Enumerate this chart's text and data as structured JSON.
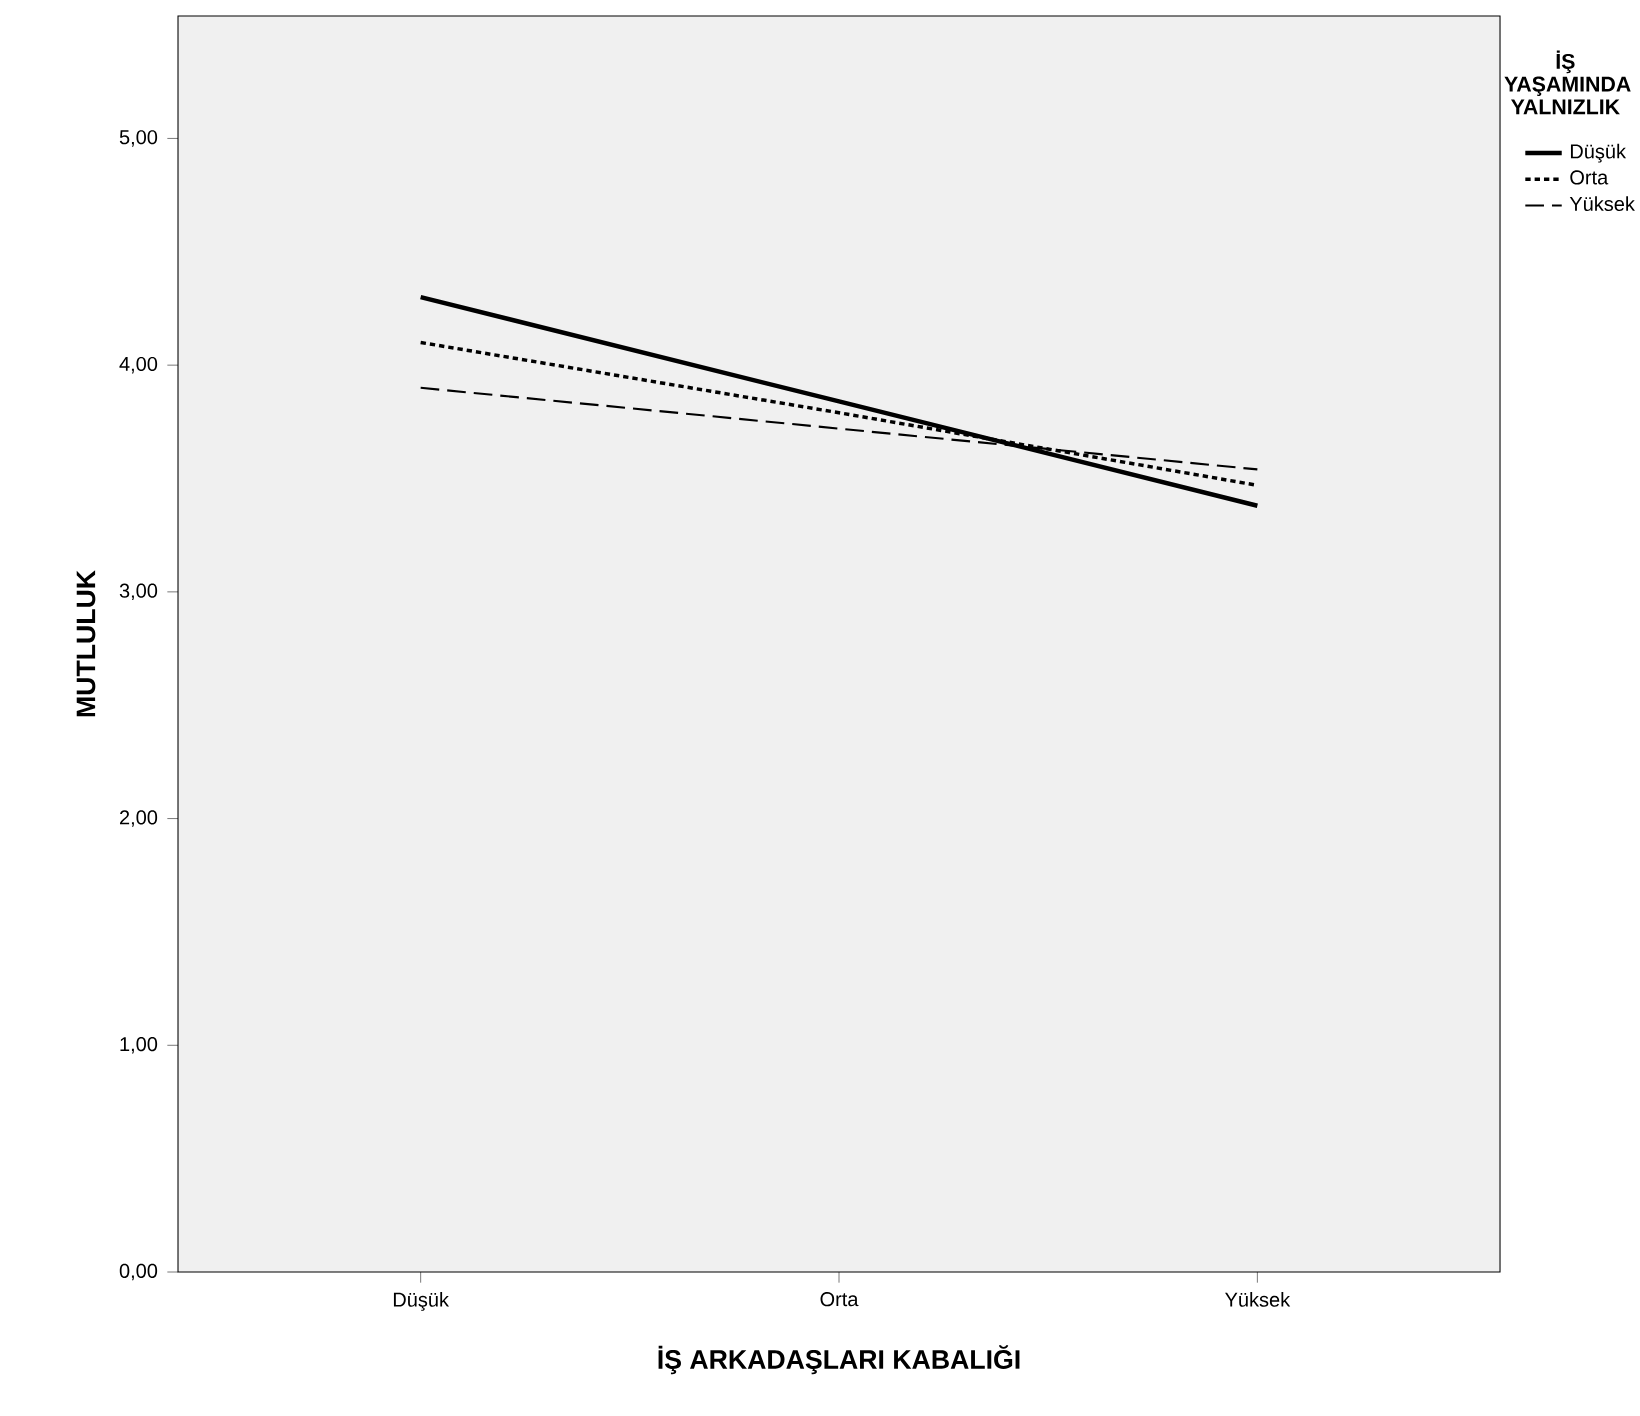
{
  "chart_data": {
    "type": "line",
    "xlabel": "İŞ ARKADAŞLARI KABALIĞI",
    "ylabel": "MUTLULUK",
    "legend_title": "İŞ YAŞAMINDA YALNIZLIK",
    "categories": [
      "Düşük",
      "Orta",
      "Yüksek"
    ],
    "series": [
      {
        "name": "Düşük",
        "color": "#000000",
        "line_style": "solid",
        "values": [
          4.3,
          3.84,
          3.38
        ]
      },
      {
        "name": "Orta",
        "color": "#000000",
        "line_style": "dotted",
        "values": [
          4.1,
          3.79,
          3.47
        ]
      },
      {
        "name": "Yüksek",
        "color": "#000000",
        "line_style": "dashed",
        "values": [
          3.9,
          3.72,
          3.54
        ]
      }
    ],
    "ylim": [
      0,
      5.54
    ],
    "yticks": [
      {
        "value": 0,
        "label": "0,00"
      },
      {
        "value": 1,
        "label": "1,00"
      },
      {
        "value": 2,
        "label": "2,00"
      },
      {
        "value": 3,
        "label": "3,00"
      },
      {
        "value": 4,
        "label": "4,00"
      },
      {
        "value": 5,
        "label": "5,00"
      }
    ],
    "legend": "right",
    "grid": false,
    "marker": "none"
  }
}
